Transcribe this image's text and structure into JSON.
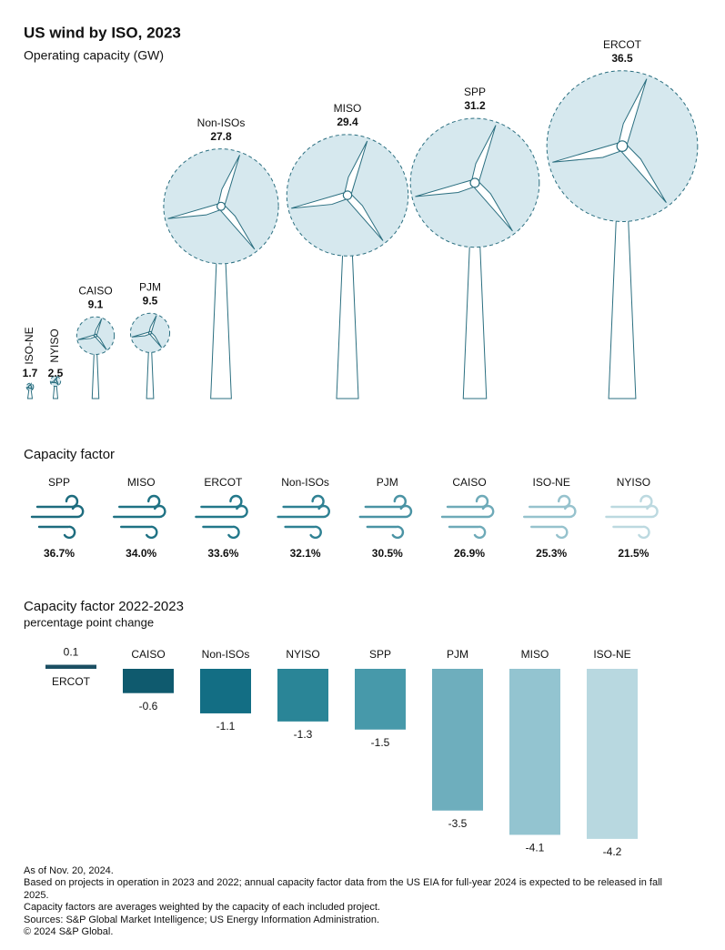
{
  "chart_data": [
    {
      "type": "turbine",
      "title": "US wind by ISO, 2023",
      "subtitle": "Operating capacity (GW)",
      "categories": [
        "ISO-NE",
        "NYISO",
        "CAISO",
        "PJM",
        "Non-ISOs",
        "MISO",
        "SPP",
        "ERCOT"
      ],
      "values": [
        1.7,
        2.5,
        9.1,
        9.5,
        27.8,
        29.4,
        31.2,
        36.5
      ],
      "color": "#d6e8ee",
      "stroke": "#2b6f80"
    },
    {
      "type": "wind-icon",
      "title": "Capacity factor",
      "categories": [
        "SPP",
        "MISO",
        "ERCOT",
        "Non-ISOs",
        "PJM",
        "CAISO",
        "ISO-NE",
        "NYISO"
      ],
      "values": [
        36.7,
        34.0,
        33.6,
        32.1,
        30.5,
        26.9,
        25.3,
        21.5
      ],
      "value_labels": [
        "36.7%",
        "34.0%",
        "33.6%",
        "32.1%",
        "30.5%",
        "26.9%",
        "25.3%",
        "21.5%"
      ],
      "colors": [
        "#1d6c7e",
        "#1f7284",
        "#23788a",
        "#2f8193",
        "#4a93a4",
        "#6eaab8",
        "#96c2cd",
        "#bcd9e0"
      ]
    },
    {
      "type": "bar",
      "title": "Capacity factor 2022-2023",
      "subtitle": "percentage point change",
      "categories": [
        "ERCOT",
        "CAISO",
        "Non-ISOs",
        "NYISO",
        "SPP",
        "PJM",
        "MISO",
        "ISO-NE"
      ],
      "values": [
        0.1,
        -0.6,
        -1.1,
        -1.3,
        -1.5,
        -3.5,
        -4.1,
        -4.2
      ],
      "colors": [
        "#1b4f63",
        "#0f5a6e",
        "#136e84",
        "#2a8597",
        "#4799aa",
        "#6eaebd",
        "#93c4d0",
        "#b8d8e0"
      ]
    }
  ],
  "notes": [
    "As of Nov. 20, 2024.",
    "Based on projects in operation in 2023 and 2022; annual capacity factor data from the US EIA for full-year 2024 is expected to be released in fall 2025.",
    "Capacity factors are averages weighted by the capacity of each included project.",
    "Sources: S&P Global Market Intelligence; US Energy Information Administration.",
    "© 2024 S&P Global."
  ]
}
